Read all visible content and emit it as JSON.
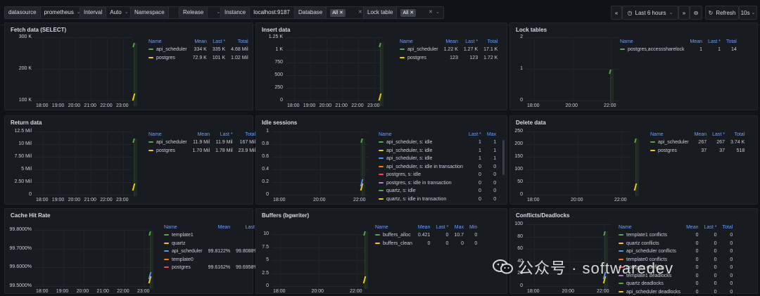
{
  "topbar": {
    "datasource": {
      "label": "datasource",
      "value": "prometheus"
    },
    "interval": {
      "label": "Interval",
      "value": "Auto"
    },
    "namespace": {
      "label": "Namespace",
      "value": ""
    },
    "release": {
      "label": "Release",
      "value": ""
    },
    "instance": {
      "label": "Instance",
      "value": "localhost:9187"
    },
    "database": {
      "label": "Database",
      "value": "All"
    },
    "lock_table": {
      "label": "Lock table",
      "value": "All"
    },
    "time_range": "Last 6 hours",
    "refresh_label": "Refresh",
    "refresh_interval": "10s"
  },
  "panels": {
    "fetch": {
      "title": "Fetch data (SELECT)",
      "yticks": [
        "300 K",
        "200 K",
        "100 K"
      ],
      "xticks": [
        "18:00",
        "19:00",
        "20:00",
        "21:00",
        "22:00",
        "23:00"
      ],
      "headers": [
        "Name",
        "Mean",
        "Last *",
        "Total"
      ],
      "rows": [
        {
          "name": "api_scheduler",
          "color": "#56a64b",
          "vals": [
            "334 K",
            "335 K",
            "4.68 Mil"
          ]
        },
        {
          "name": "postgres",
          "color": "#f2cc0c",
          "vals": [
            "72.9 K",
            "101 K",
            "1.02 Mil"
          ]
        }
      ]
    },
    "insert": {
      "title": "Insert data",
      "yticks": [
        "1.25 K",
        "1 K",
        "750",
        "500",
        "250",
        "0"
      ],
      "xticks": [
        "18:00",
        "19:00",
        "20:00",
        "21:00",
        "22:00",
        "23:00"
      ],
      "headers": [
        "Name",
        "Mean",
        "Last *",
        "Total"
      ],
      "rows": [
        {
          "name": "api_scheduler",
          "color": "#56a64b",
          "vals": [
            "1.22 K",
            "1.27 K",
            "17.1 K"
          ]
        },
        {
          "name": "postgres",
          "color": "#f2cc0c",
          "vals": [
            "123",
            "123",
            "1.72 K"
          ]
        }
      ]
    },
    "lock": {
      "title": "Lock tables",
      "yticks": [
        "2",
        "1",
        "0"
      ],
      "xticks": [
        "18:00",
        "20:00",
        "22:00"
      ],
      "headers": [
        "Name",
        "Mean",
        "Last *",
        "Total"
      ],
      "rows": [
        {
          "name": "postgres,accesssharelock",
          "color": "#56a64b",
          "vals": [
            "1",
            "1",
            "14"
          ]
        }
      ]
    },
    "return": {
      "title": "Return data",
      "yticks": [
        "12.5 Mil",
        "10 Mil",
        "7.50 Mil",
        "5 Mil",
        "2.50 Mil",
        "0"
      ],
      "xticks": [
        "18:00",
        "19:00",
        "20:00",
        "21:00",
        "22:00",
        "23:00"
      ],
      "headers": [
        "Name",
        "Mean",
        "Last *",
        "Total"
      ],
      "rows": [
        {
          "name": "api_scheduler",
          "color": "#56a64b",
          "vals": [
            "11.9 Mil",
            "11.9 Mil",
            "167 Mil"
          ]
        },
        {
          "name": "postgres",
          "color": "#f2cc0c",
          "vals": [
            "1.70 Mil",
            "1.78 Mil",
            "23.9 Mil"
          ]
        }
      ]
    },
    "idle": {
      "title": "Idle sessions",
      "yticks": [
        "1",
        "0.8",
        "0.6",
        "0.4",
        "0.2",
        "0"
      ],
      "xticks": [
        "18:00",
        "20:00",
        "22:00"
      ],
      "headers": [
        "Name",
        "Last *",
        "Max"
      ],
      "rows": [
        {
          "name": "api_scheduler, s: idle",
          "color": "#56a64b",
          "vals": [
            "1",
            "1"
          ]
        },
        {
          "name": "api_scheduler, s: idle",
          "color": "#f2cc0c",
          "vals": [
            "1",
            "1"
          ]
        },
        {
          "name": "api_scheduler, s: idle",
          "color": "#5794f2",
          "vals": [
            "1",
            "1"
          ]
        },
        {
          "name": "api_scheduler, s: idle in transaction",
          "color": "#ff780a",
          "vals": [
            "0",
            "0"
          ]
        },
        {
          "name": "postgres, s: idle",
          "color": "#f2495c",
          "vals": [
            "0",
            "0"
          ]
        },
        {
          "name": "postgres, s: idle in transaction",
          "color": "#b877d9",
          "vals": [
            "0",
            "0"
          ]
        },
        {
          "name": "quartz, s: idle",
          "color": "#56a64b",
          "vals": [
            "0",
            "0"
          ]
        },
        {
          "name": "quartz, s: idle in transaction",
          "color": "#f2cc0c",
          "vals": [
            "0",
            "0"
          ]
        }
      ]
    },
    "delete": {
      "title": "Delete data",
      "yticks": [
        "250",
        "200",
        "150",
        "100",
        "50",
        "0"
      ],
      "xticks": [
        "18:00",
        "20:00",
        "22:00"
      ],
      "headers": [
        "Name",
        "Mean",
        "Last *",
        "Total"
      ],
      "rows": [
        {
          "name": "api_scheduler",
          "color": "#56a64b",
          "vals": [
            "267",
            "267",
            "3.74 K"
          ]
        },
        {
          "name": "postgres",
          "color": "#f2cc0c",
          "vals": [
            "37",
            "37",
            "518"
          ]
        }
      ]
    },
    "cache": {
      "title": "Cache Hit Rate",
      "yticks": [
        "99.8000%",
        "99.7000%",
        "99.6000%",
        "99.5000%"
      ],
      "xticks": [
        "18:00",
        "19:00",
        "20:00",
        "21:00",
        "22:00",
        "23:00"
      ],
      "headers": [
        "Name",
        "Mean",
        "Last *"
      ],
      "rows": [
        {
          "name": "template1",
          "color": "#56a64b",
          "vals": [
            "",
            ""
          ]
        },
        {
          "name": "quartz",
          "color": "#f2cc0c",
          "vals": [
            "",
            ""
          ]
        },
        {
          "name": "api_scheduler",
          "color": "#5794f2",
          "vals": [
            "99.8122%",
            "99.8088%"
          ]
        },
        {
          "name": "template0",
          "color": "#ff780a",
          "vals": [
            "",
            ""
          ]
        },
        {
          "name": "postgres",
          "color": "#f2495c",
          "vals": [
            "99.6162%",
            "99.6958%"
          ]
        }
      ]
    },
    "buffers": {
      "title": "Buffers (bgwriter)",
      "yticks": [
        "10",
        "7.5",
        "5",
        "2.5",
        "0"
      ],
      "xticks": [
        "18:00",
        "20:00",
        "22:00"
      ],
      "headers": [
        "Name",
        "Mean",
        "Last *",
        "Max",
        "Min"
      ],
      "rows": [
        {
          "name": "buffers_alloc",
          "color": "#56a64b",
          "vals": [
            "0.421",
            "0",
            "10.7",
            "0"
          ]
        },
        {
          "name": "buffers_clean",
          "color": "#f2cc0c",
          "vals": [
            "0",
            "0",
            "0",
            "0"
          ]
        }
      ]
    },
    "conflicts": {
      "title": "Conflicts/Deadlocks",
      "yticks": [
        "100",
        "80",
        "60",
        "40",
        "20",
        "0"
      ],
      "xticks": [
        "18:00",
        "20:00",
        "22:00"
      ],
      "headers": [
        "Name",
        "Mean",
        "Last *",
        "Total"
      ],
      "rows": [
        {
          "name": "template1 conflicts",
          "color": "#56a64b",
          "vals": [
            "0",
            "0",
            "0"
          ]
        },
        {
          "name": "quartz conflicts",
          "color": "#f2cc0c",
          "vals": [
            "0",
            "0",
            "0"
          ]
        },
        {
          "name": "api_scheduler conflicts",
          "color": "#5794f2",
          "vals": [
            "0",
            "0",
            "0"
          ]
        },
        {
          "name": "template0 conflicts",
          "color": "#ff780a",
          "vals": [
            "0",
            "0",
            "0"
          ]
        },
        {
          "name": "postgres conflicts",
          "color": "#f2495c",
          "vals": [
            "0",
            "0",
            "0"
          ]
        },
        {
          "name": "template1 deadlocks",
          "color": "#b877d9",
          "vals": [
            "0",
            "0",
            "0"
          ]
        },
        {
          "name": "quartz deadlocks",
          "color": "#56a64b",
          "vals": [
            "0",
            "0",
            "0"
          ]
        },
        {
          "name": "api_scheduler deadlocks",
          "color": "#f2cc0c",
          "vals": [
            "0",
            "0",
            "0"
          ]
        }
      ]
    }
  },
  "watermark": "公众号 · softwaredev"
}
